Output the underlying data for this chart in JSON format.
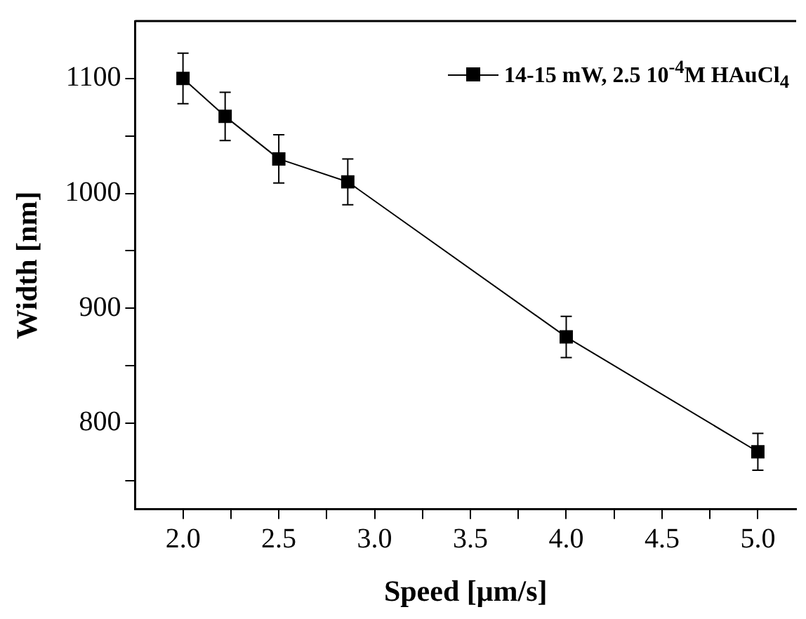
{
  "chart_data": {
    "type": "line",
    "xlabel": "Speed [μm/s]",
    "ylabel": "Width [nm]",
    "x": [
      2.0,
      2.22,
      2.5,
      2.86,
      4.0,
      5.0
    ],
    "series": [
      {
        "name": "14-15 mW, 2.5 10$^{-4}$M HAuCl$_{4}$",
        "color": "#000000",
        "values": [
          1100,
          1067,
          1030,
          1010,
          875,
          775
        ],
        "errors": [
          22,
          21,
          21,
          20,
          18,
          16
        ]
      }
    ],
    "xlim": [
      1.75,
      5.2
    ],
    "xticks": [
      {
        "value": 2.0,
        "label": "2.0"
      },
      {
        "value": 2.25,
        "label": null
      },
      {
        "value": 2.5,
        "label": "2.5"
      },
      {
        "value": 2.75,
        "label": null
      },
      {
        "value": 3.0,
        "label": "3.0"
      },
      {
        "value": 3.25,
        "label": null
      },
      {
        "value": 3.5,
        "label": "3.5"
      },
      {
        "value": 3.75,
        "label": null
      },
      {
        "value": 4.0,
        "label": "4.0"
      },
      {
        "value": 4.25,
        "label": null
      },
      {
        "value": 4.5,
        "label": "4.5"
      },
      {
        "value": 4.75,
        "label": null
      },
      {
        "value": 5.0,
        "label": "5.0"
      }
    ],
    "ylim": [
      725,
      1150
    ],
    "yticks": [
      {
        "value": 750,
        "label": null
      },
      800,
      {
        "value": 850,
        "label": null
      },
      900,
      {
        "value": 950,
        "label": null
      },
      1000,
      {
        "value": 1050,
        "label": null
      },
      1100
    ],
    "grid": false,
    "legend": "top right",
    "marker": "square",
    "line_style": "solid"
  }
}
